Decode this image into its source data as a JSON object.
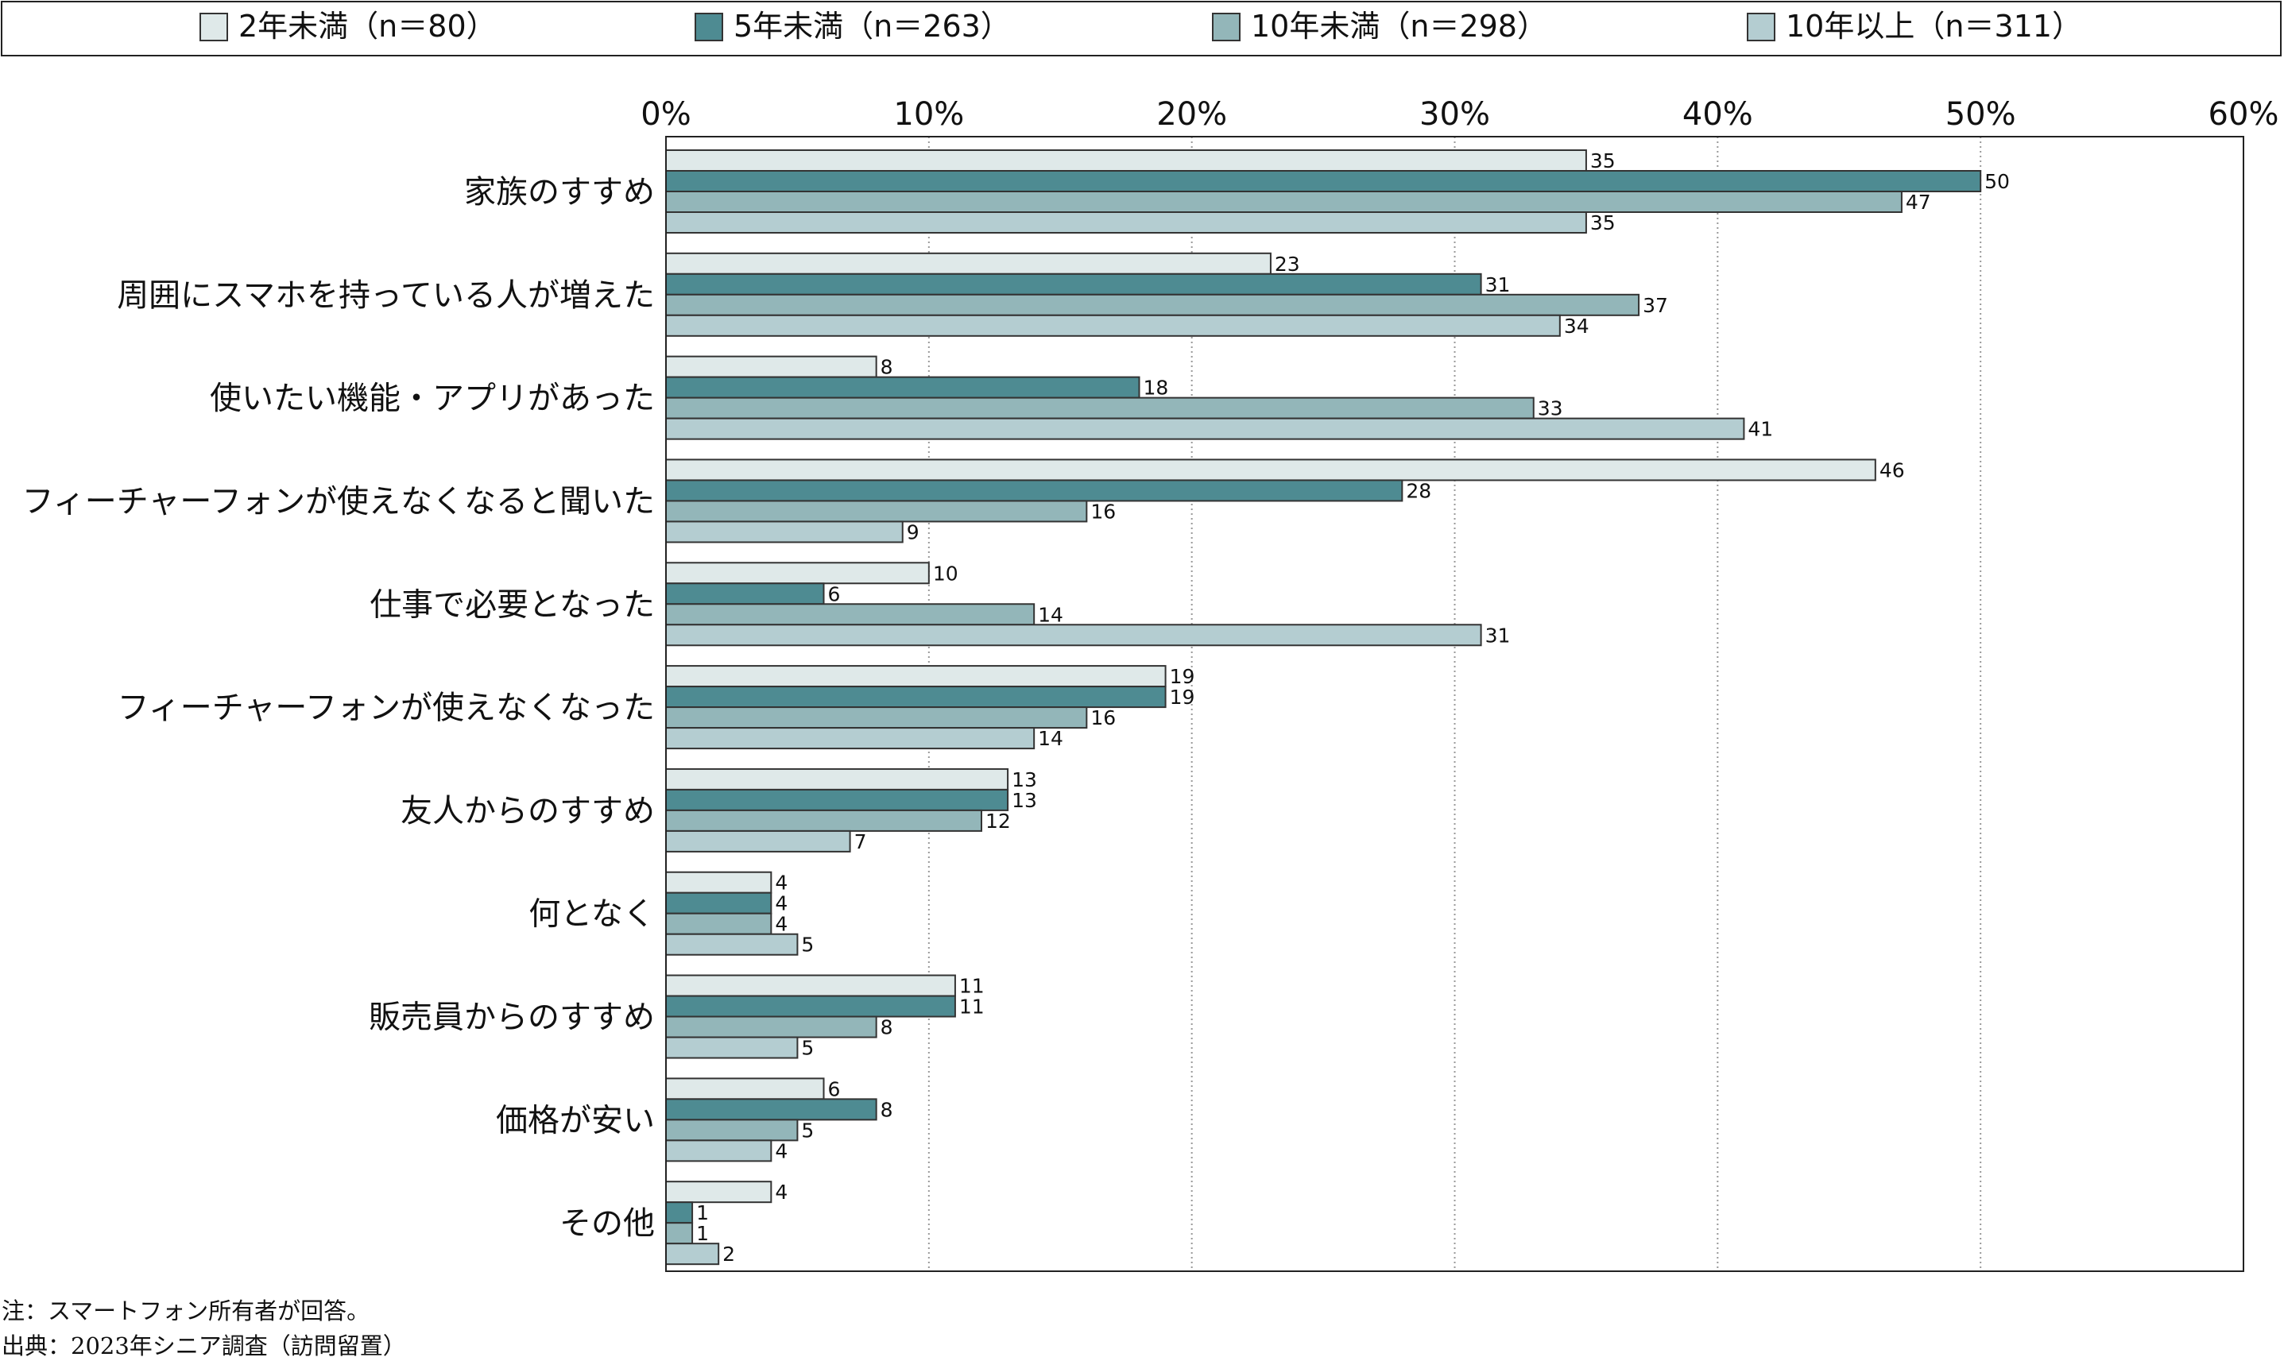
{
  "colors": {
    "series": [
      "#dfe9e9",
      "#4e8b92",
      "#93b6b9",
      "#b4cdd1"
    ],
    "bar_stroke": "#333333",
    "grid": "#999999",
    "frame": "#222222"
  },
  "chart_data": {
    "type": "bar",
    "orientation": "horizontal",
    "categories": [
      "家族のすすめ",
      "周囲にスマホを持っている人が増えた",
      "使いたい機能・アプリがあった",
      "フィーチャーフォンが使えなくなると聞いた",
      "仕事で必要となった",
      "フィーチャーフォンが使えなくなった",
      "友人からのすすめ",
      "何となく",
      "販売員からのすすめ",
      "価格が安い",
      "その他"
    ],
    "series": [
      {
        "name": "2年未満（n＝80）",
        "values": [
          35,
          23,
          8,
          46,
          10,
          19,
          13,
          4,
          11,
          6,
          4
        ]
      },
      {
        "name": "5年未満（n＝263）",
        "values": [
          50,
          31,
          18,
          28,
          6,
          19,
          13,
          4,
          11,
          8,
          1
        ]
      },
      {
        "name": "10年未満（n＝298）",
        "values": [
          47,
          37,
          33,
          16,
          14,
          16,
          12,
          4,
          8,
          5,
          1
        ]
      },
      {
        "name": "10年以上（n＝311）",
        "values": [
          35,
          34,
          41,
          9,
          31,
          14,
          7,
          5,
          5,
          4,
          2
        ]
      }
    ],
    "xlim": [
      0,
      60
    ],
    "xticks": [
      "0%",
      "10%",
      "20%",
      "30%",
      "40%",
      "50%",
      "60%"
    ],
    "grid": true,
    "legend_position": "top"
  },
  "notes": {
    "note": "注：スマートフォン所有者が回答。",
    "source": "出典：2023年シニア調査（訪問留置）"
  }
}
